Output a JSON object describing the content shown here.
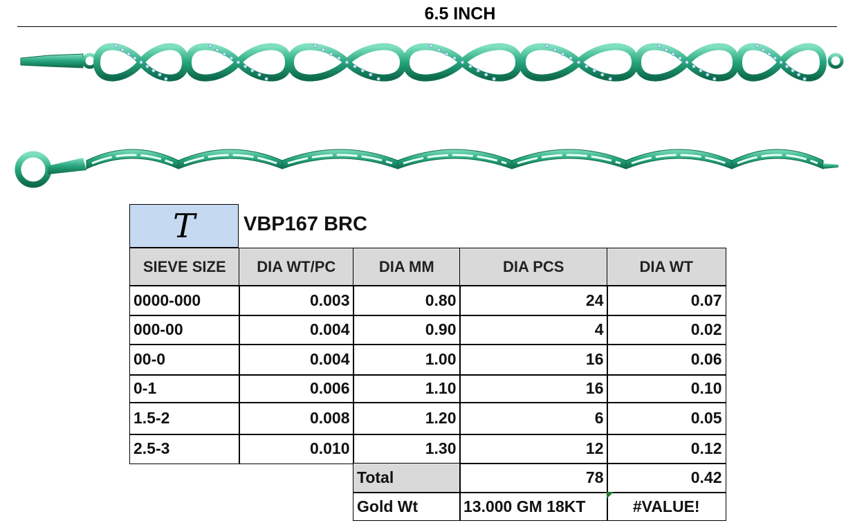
{
  "header": {
    "title": "6.5 INCH"
  },
  "logo": "T",
  "product": "VBP167 BRC",
  "table": {
    "columns": [
      "SIEVE SIZE",
      "DIA WT/PC",
      "DIA MM",
      "DIA PCS",
      "DIA WT"
    ],
    "rows": [
      [
        "0000-000",
        "0.003",
        "0.80",
        "24",
        "0.07"
      ],
      [
        "000-00",
        "0.004",
        "0.90",
        "4",
        "0.02"
      ],
      [
        "00-0",
        "0.004",
        "1.00",
        "16",
        "0.06"
      ],
      [
        "0-1",
        "0.006",
        "1.10",
        "16",
        "0.10"
      ],
      [
        "1.5-2",
        "0.008",
        "1.20",
        "6",
        "0.05"
      ],
      [
        "2.5-3",
        "0.010",
        "1.30",
        "12",
        "0.12"
      ]
    ]
  },
  "total": {
    "label": "Total",
    "dia_pcs": "78",
    "dia_wt": "0.42"
  },
  "gold": {
    "label": "Gold Wt",
    "value": "13.000 GM 18KT",
    "result": "#VALUE!"
  }
}
